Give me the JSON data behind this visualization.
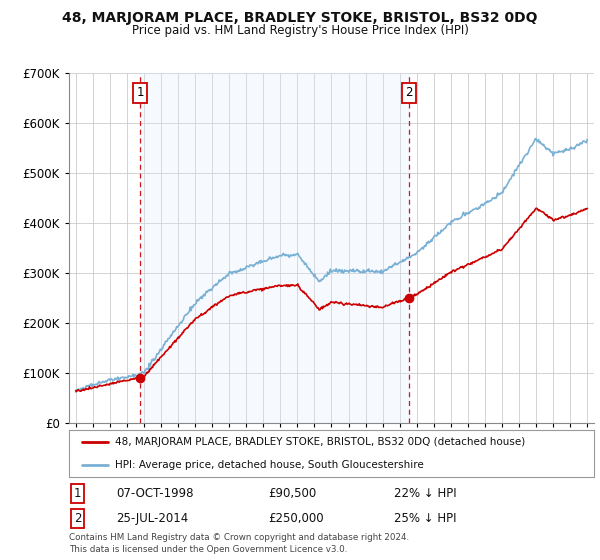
{
  "title": "48, MARJORAM PLACE, BRADLEY STOKE, BRISTOL, BS32 0DQ",
  "subtitle": "Price paid vs. HM Land Registry's House Price Index (HPI)",
  "hpi_label": "HPI: Average price, detached house, South Gloucestershire",
  "property_label": "48, MARJORAM PLACE, BRADLEY STOKE, BRISTOL, BS32 0DQ (detached house)",
  "transaction1": {
    "num": "1",
    "date": "07-OCT-1998",
    "price": "£90,500",
    "note": "22% ↓ HPI"
  },
  "transaction2": {
    "num": "2",
    "date": "25-JUL-2014",
    "price": "£250,000",
    "note": "25% ↓ HPI"
  },
  "t1_year": 1998.77,
  "t1_price": 90500,
  "t2_year": 2014.56,
  "t2_price": 250000,
  "hpi_color": "#7ab0d4",
  "property_color": "#cc0000",
  "vline_color": "#cc0000",
  "shade_color": "#ddeeff",
  "background_color": "#ffffff",
  "grid_color": "#cccccc",
  "footer": "Contains HM Land Registry data © Crown copyright and database right 2024.\nThis data is licensed under the Open Government Licence v3.0.",
  "ylim": [
    0,
    700000
  ],
  "yticks": [
    0,
    100000,
    200000,
    300000,
    400000,
    500000,
    600000,
    700000
  ],
  "xlim_start": 1994.6,
  "xlim_end": 2025.4
}
